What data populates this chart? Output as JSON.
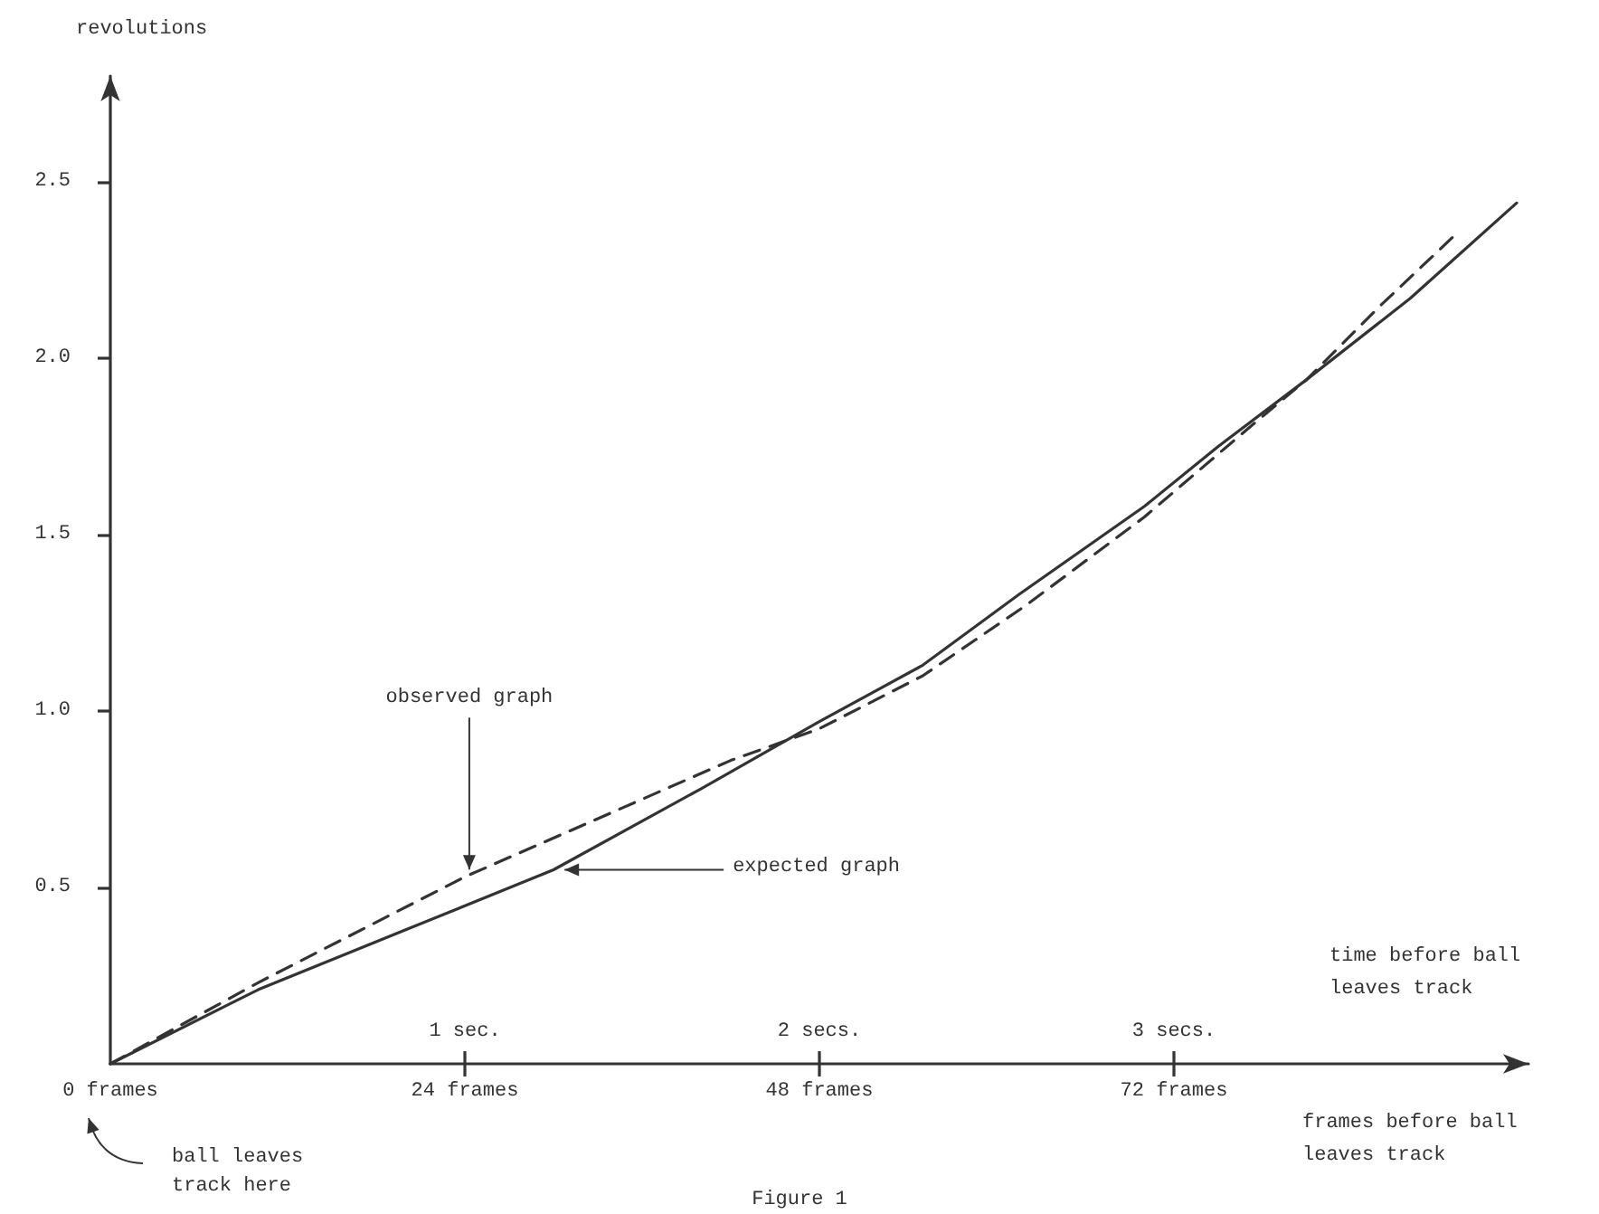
{
  "chart_data": {
    "type": "line",
    "xlabel": "frames before ball leaves track",
    "ylabel": "revolutions",
    "x2label": "time before ball leaves track",
    "xlim": [
      0,
      96
    ],
    "xticks": [
      {
        "value": 0,
        "label": "0 frames"
      },
      {
        "value": 24,
        "label": "24 frames"
      },
      {
        "value": 48,
        "label": "48 frames"
      },
      {
        "value": 72,
        "label": "72 frames"
      }
    ],
    "x2lim": [
      0,
      4
    ],
    "x2ticks": [
      {
        "value": 1,
        "label": "1 sec."
      },
      {
        "value": 2,
        "label": "2 secs."
      },
      {
        "value": 3,
        "label": "3 secs."
      }
    ],
    "ylim": [
      0,
      2.8
    ],
    "yticks": [
      0.5,
      {
        "value": 1,
        "label": "1.0"
      },
      1.5,
      {
        "value": 2,
        "label": "2.0"
      },
      2.5
    ],
    "marker": "none",
    "series": [
      {
        "color": "#333333",
        "line_style": "solid",
        "x": [
          0,
          10,
          20,
          30,
          40,
          48,
          55,
          61.5,
          70,
          75,
          81,
          88,
          95.2
        ],
        "values": [
          0,
          0.21,
          0.38,
          0.55,
          0.78,
          0.97,
          1.13,
          1.33,
          1.58,
          1.75,
          1.94,
          2.17,
          2.44
        ]
      },
      {
        "color": "#333333",
        "line_style": "dashed",
        "x": [
          0,
          10,
          24,
          36,
          42,
          48,
          55,
          62,
          70,
          77,
          81,
          86,
          91.3
        ],
        "values": [
          0,
          0.23,
          0.53,
          0.75,
          0.86,
          0.95,
          1.1,
          1.3,
          1.55,
          1.8,
          1.94,
          2.15,
          2.36
        ]
      }
    ],
    "annotations": [
      {
        "text": "observed graph",
        "x": 24.3,
        "y": 0.53
      },
      {
        "text": "expected graph",
        "x": 30.5,
        "y": 0.55
      },
      "ball leaves track here",
      "Figure 1"
    ]
  }
}
